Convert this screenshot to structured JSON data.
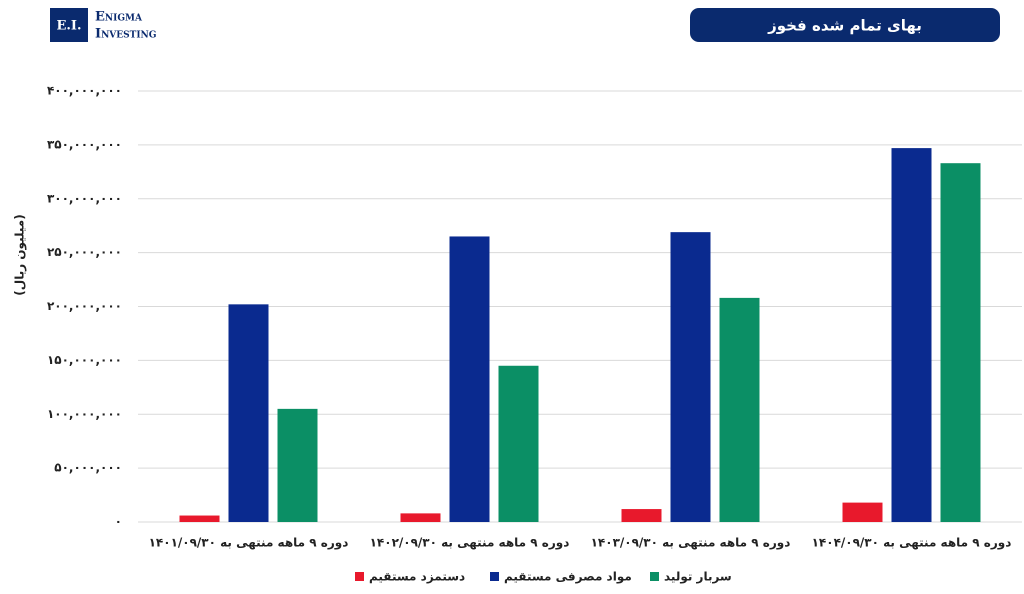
{
  "branding": {
    "mark": "E.I.",
    "name_line1": "Enigma",
    "name_line2": "Investing"
  },
  "chart_data": {
    "type": "bar",
    "title": "بهای تمام شده فخوز",
    "y_label": "(میلیون ریال)",
    "categories": [
      "دوره ۹ ماهه منتهی به ۱۴۰۱/۰۹/۳۰",
      "دوره ۹ ماهه منتهی به ۱۴۰۲/۰۹/۳۰",
      "دوره ۹ ماهه منتهی به ۱۴۰۳/۰۹/۳۰",
      "دوره ۹ ماهه منتهی به ۱۴۰۴/۰۹/۳۰"
    ],
    "series": [
      {
        "name": "دستمزد مستقیم",
        "color": "#e8192c",
        "values": [
          6000000,
          8000000,
          12000000,
          18000000
        ]
      },
      {
        "name": "مواد مصرفی مستقیم",
        "color": "#0a2a8f",
        "values": [
          202000000,
          265000000,
          269000000,
          347000000
        ]
      },
      {
        "name": "سربار تولید",
        "color": "#0b8f65",
        "values": [
          105000000,
          145000000,
          208000000,
          333000000
        ]
      }
    ],
    "ylim": [
      0,
      400000000
    ],
    "yticks": [
      {
        "value": 0,
        "label": "۰"
      },
      {
        "value": 50000000,
        "label": "۵۰,۰۰۰,۰۰۰"
      },
      {
        "value": 100000000,
        "label": "۱۰۰,۰۰۰,۰۰۰"
      },
      {
        "value": 150000000,
        "label": "۱۵۰,۰۰۰,۰۰۰"
      },
      {
        "value": 200000000,
        "label": "۲۰۰,۰۰۰,۰۰۰"
      },
      {
        "value": 250000000,
        "label": "۲۵۰,۰۰۰,۰۰۰"
      },
      {
        "value": 300000000,
        "label": "۳۰۰,۰۰۰,۰۰۰"
      },
      {
        "value": 350000000,
        "label": "۳۵۰,۰۰۰,۰۰۰"
      },
      {
        "value": 400000000,
        "label": "۴۰۰,۰۰۰,۰۰۰"
      }
    ],
    "grid": true,
    "legend": "bottom"
  }
}
